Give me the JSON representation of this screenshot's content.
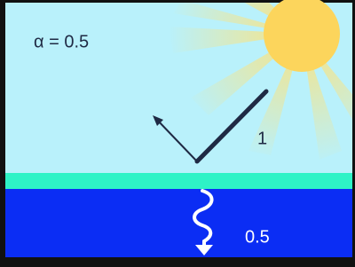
{
  "alpha_label": "α = 0.5",
  "incoming_label": "1",
  "absorbed_label": "0.5"
}
